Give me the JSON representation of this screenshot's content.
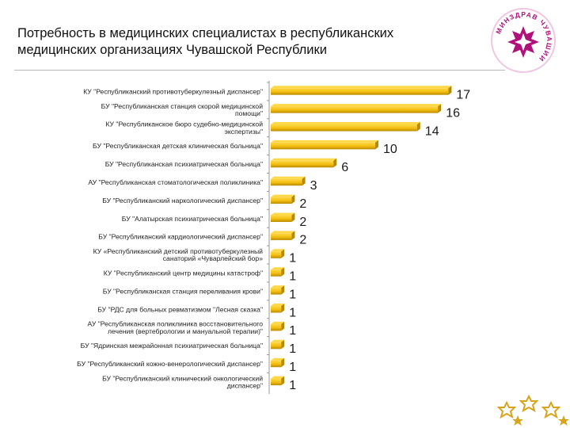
{
  "header": {
    "title_line1": "Потребность в медицинских специалистах в республиканских",
    "title_line2": "медицинских организациях Чувашской Республики",
    "logo_text": "МИНЗДРАВ ЧУВАШИИ"
  },
  "colors": {
    "bar": "#f2bd0e",
    "bar_light": "#ffd84a",
    "bar_dark": "#b88a00",
    "axis": "#999999",
    "logo_magenta": "#b0127a"
  },
  "chart_data": {
    "type": "bar",
    "orientation": "horizontal",
    "grid": false,
    "legend": "none",
    "xlim": [
      0,
      17
    ],
    "categories": [
      [
        "КУ \"Республиканский противотуберкулезный диспансер\""
      ],
      [
        "БУ \"Республиканская станция скорой медицинской",
        "помощи\""
      ],
      [
        "КУ \"Республиканское бюро судебно-медицинской",
        "экспертизы\""
      ],
      [
        "БУ \"Республиканская детская клиническая больница\""
      ],
      [
        "БУ \"Республиканская психиатрическая больница\""
      ],
      [
        "АУ \"Республиканская стоматологическая поликлиника\""
      ],
      [
        "БУ \"Республиканский наркологический диспансер\""
      ],
      [
        "БУ \"Алатырская психиатрическая больница\""
      ],
      [
        "БУ \"Республиканский кардиологический диспансер\""
      ],
      [
        "КУ «Республиканский детский противотуберкулезный",
        "санаторий «Чуварлейский бор»"
      ],
      [
        "КУ \"Республиканский центр медицины катастроф\""
      ],
      [
        "БУ \"Республиканская станция переливания крови\""
      ],
      [
        "БУ \"РДС для больных ревматизмом \"Лесная сказка\""
      ],
      [
        "АУ \"Республиканская поликлиника восстановительного",
        "лечения (вертебрологии и мануальной терапии)\""
      ],
      [
        "БУ \"Ядринская межрайонная психиатрическая больница\""
      ],
      [
        "БУ \"Республиканский кожно-венерологический диспансер\""
      ],
      [
        "БУ \"Республиканский клинический онкологический",
        "диспансер\""
      ]
    ],
    "values": [
      17,
      16,
      14,
      10,
      6,
      3,
      2,
      2,
      2,
      1,
      1,
      1,
      1,
      1,
      1,
      1,
      1
    ]
  }
}
